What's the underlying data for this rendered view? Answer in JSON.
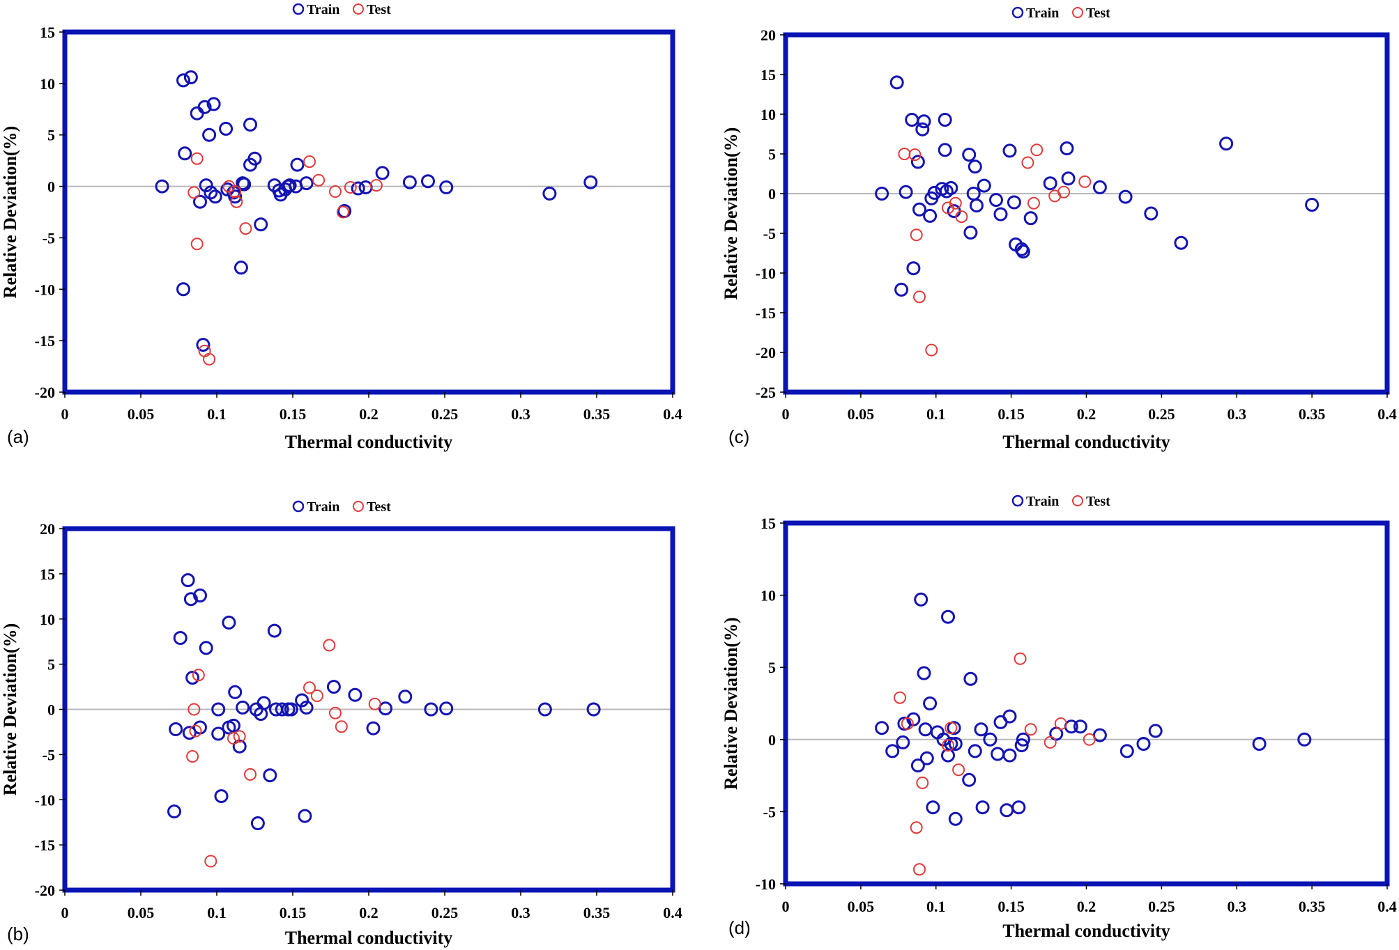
{
  "colors": {
    "train": "#1414b4",
    "test": "#e23a3a",
    "frame": "#0a14b4"
  },
  "chart_data": [
    {
      "type": "scatter",
      "panel_label": "(a)",
      "title": "",
      "xlabel": "Thermal conductivity",
      "ylabel": "Relative Deviation(%)",
      "xlim": [
        0,
        0.4
      ],
      "ylim": [
        -20,
        15
      ],
      "xticks": [
        0,
        0.05,
        0.1,
        0.15,
        0.2,
        0.25,
        0.3,
        0.35,
        0.4
      ],
      "xtick_labels": [
        "0",
        "0.05",
        "0.1",
        "0.15",
        "0.2",
        "0.25",
        "0.3",
        "0.35",
        "0.4"
      ],
      "yticks": [
        -20,
        -15,
        -10,
        -5,
        0,
        5,
        10,
        15
      ],
      "ytick_labels": [
        "-20",
        "-15",
        "-10",
        "-5",
        "0",
        "5",
        "10",
        "15"
      ],
      "legend": [
        "Train",
        "Test"
      ],
      "series": [
        {
          "name": "Train",
          "points": [
            [
              0.064,
              0
            ],
            [
              0.078,
              10.3
            ],
            [
              0.083,
              10.6
            ],
            [
              0.079,
              3.2
            ],
            [
              0.087,
              7.1
            ],
            [
              0.092,
              7.7
            ],
            [
              0.095,
              5.0
            ],
            [
              0.098,
              8.0
            ],
            [
              0.106,
              5.6
            ],
            [
              0.122,
              6.0
            ],
            [
              0.125,
              2.7
            ],
            [
              0.122,
              2.1
            ],
            [
              0.093,
              0.1
            ],
            [
              0.096,
              -0.6
            ],
            [
              0.099,
              -1.0
            ],
            [
              0.089,
              -1.5
            ],
            [
              0.107,
              -0.3
            ],
            [
              0.111,
              -0.6
            ],
            [
              0.112,
              -1.0
            ],
            [
              0.117,
              0.3
            ],
            [
              0.118,
              0.2
            ],
            [
              0.129,
              -3.7
            ],
            [
              0.116,
              -7.9
            ],
            [
              0.078,
              -10.0
            ],
            [
              0.091,
              -15.4
            ],
            [
              0.138,
              0.1
            ],
            [
              0.141,
              -0.4
            ],
            [
              0.142,
              -0.8
            ],
            [
              0.145,
              -0.3
            ],
            [
              0.147,
              0.0
            ],
            [
              0.148,
              0.1
            ],
            [
              0.152,
              0.0
            ],
            [
              0.153,
              2.1
            ],
            [
              0.159,
              0.3
            ],
            [
              0.184,
              -2.4
            ],
            [
              0.193,
              -0.2
            ],
            [
              0.198,
              -0.1
            ],
            [
              0.209,
              1.3
            ],
            [
              0.227,
              0.4
            ],
            [
              0.239,
              0.5
            ],
            [
              0.251,
              -0.1
            ],
            [
              0.319,
              -0.7
            ],
            [
              0.346,
              0.4
            ]
          ]
        },
        {
          "name": "Test",
          "points": [
            [
              0.085,
              -0.6
            ],
            [
              0.087,
              2.7
            ],
            [
              0.087,
              -5.6
            ],
            [
              0.092,
              -16.0
            ],
            [
              0.095,
              -16.8
            ],
            [
              0.108,
              0.0
            ],
            [
              0.112,
              -0.5
            ],
            [
              0.113,
              -1.5
            ],
            [
              0.119,
              -4.1
            ],
            [
              0.161,
              2.4
            ],
            [
              0.167,
              0.6
            ],
            [
              0.178,
              -0.5
            ],
            [
              0.183,
              -2.5
            ],
            [
              0.188,
              -0.1
            ],
            [
              0.205,
              0.1
            ]
          ]
        }
      ]
    },
    {
      "type": "scatter",
      "panel_label": "(b)",
      "title": "",
      "xlabel": "Thermal conductivity",
      "ylabel": "Relative Deviation(%)",
      "xlim": [
        0,
        0.4
      ],
      "ylim": [
        -20,
        20
      ],
      "xticks": [
        0,
        0.05,
        0.1,
        0.15,
        0.2,
        0.25,
        0.3,
        0.35,
        0.4
      ],
      "xtick_labels": [
        "0",
        "0.05",
        "0.1",
        "0.15",
        "0.2",
        "0.25",
        "0.3",
        "0.35",
        "0.4"
      ],
      "yticks": [
        -20,
        -15,
        -10,
        -5,
        0,
        5,
        10,
        15,
        20
      ],
      "ytick_labels": [
        "-20",
        "-15",
        "-10",
        "-5",
        "0",
        "5",
        "10",
        "15",
        "20"
      ],
      "legend": [
        "Train",
        "Test"
      ],
      "series": [
        {
          "name": "Train",
          "points": [
            [
              0.072,
              -11.3
            ],
            [
              0.073,
              -2.2
            ],
            [
              0.076,
              7.9
            ],
            [
              0.081,
              14.3
            ],
            [
              0.082,
              -2.6
            ],
            [
              0.083,
              12.2
            ],
            [
              0.084,
              3.5
            ],
            [
              0.089,
              12.6
            ],
            [
              0.089,
              -2.0
            ],
            [
              0.093,
              6.8
            ],
            [
              0.101,
              0.0
            ],
            [
              0.101,
              -2.7
            ],
            [
              0.103,
              -9.6
            ],
            [
              0.108,
              9.6
            ],
            [
              0.108,
              -2.0
            ],
            [
              0.111,
              -1.8
            ],
            [
              0.112,
              1.9
            ],
            [
              0.115,
              -4.1
            ],
            [
              0.117,
              0.2
            ],
            [
              0.126,
              0.0
            ],
            [
              0.127,
              -12.6
            ],
            [
              0.129,
              -0.5
            ],
            [
              0.131,
              0.7
            ],
            [
              0.135,
              -7.3
            ],
            [
              0.138,
              8.7
            ],
            [
              0.139,
              0.0
            ],
            [
              0.143,
              0.0
            ],
            [
              0.147,
              0.0
            ],
            [
              0.149,
              0.0
            ],
            [
              0.156,
              1.0
            ],
            [
              0.158,
              -11.8
            ],
            [
              0.159,
              0.2
            ],
            [
              0.177,
              2.5
            ],
            [
              0.191,
              1.6
            ],
            [
              0.203,
              -2.1
            ],
            [
              0.211,
              0.1
            ],
            [
              0.224,
              1.4
            ],
            [
              0.241,
              0.0
            ],
            [
              0.251,
              0.1
            ],
            [
              0.316,
              0.0
            ],
            [
              0.348,
              0.0
            ]
          ]
        },
        {
          "name": "Test",
          "points": [
            [
              0.084,
              -5.2
            ],
            [
              0.085,
              0.0
            ],
            [
              0.086,
              -2.4
            ],
            [
              0.088,
              3.8
            ],
            [
              0.096,
              -16.8
            ],
            [
              0.111,
              -3.2
            ],
            [
              0.115,
              -3.0
            ],
            [
              0.122,
              -7.2
            ],
            [
              0.161,
              2.4
            ],
            [
              0.166,
              1.5
            ],
            [
              0.174,
              7.1
            ],
            [
              0.178,
              -0.4
            ],
            [
              0.182,
              -1.9
            ],
            [
              0.204,
              0.6
            ]
          ]
        }
      ]
    },
    {
      "type": "scatter",
      "panel_label": "(c)",
      "title": "",
      "xlabel": "Thermal conductivity",
      "ylabel": "Relative Deviation(%)",
      "xlim": [
        0,
        0.4
      ],
      "ylim": [
        -25,
        20
      ],
      "xticks": [
        0,
        0.05,
        0.1,
        0.15,
        0.2,
        0.25,
        0.3,
        0.35,
        0.4
      ],
      "xtick_labels": [
        "0",
        "0.05",
        "0.1",
        "0.15",
        "0.2",
        "0.25",
        "0.3",
        "0.35",
        "0.4"
      ],
      "yticks": [
        -25,
        -20,
        -15,
        -10,
        -5,
        0,
        5,
        10,
        15,
        20
      ],
      "ytick_labels": [
        "-25",
        "-20",
        "-15",
        "-10",
        "-5",
        "0",
        "5",
        "10",
        "15",
        "20"
      ],
      "legend": [
        "Train",
        "Test"
      ],
      "series": [
        {
          "name": "Train",
          "points": [
            [
              0.064,
              0.0
            ],
            [
              0.074,
              14.0
            ],
            [
              0.077,
              -12.1
            ],
            [
              0.08,
              0.2
            ],
            [
              0.084,
              9.3
            ],
            [
              0.085,
              -9.4
            ],
            [
              0.088,
              4.0
            ],
            [
              0.089,
              -2.0
            ],
            [
              0.091,
              8.1
            ],
            [
              0.092,
              9.1
            ],
            [
              0.096,
              -2.8
            ],
            [
              0.097,
              -0.6
            ],
            [
              0.099,
              0.1
            ],
            [
              0.104,
              0.6
            ],
            [
              0.106,
              9.3
            ],
            [
              0.106,
              5.5
            ],
            [
              0.107,
              0.3
            ],
            [
              0.11,
              0.7
            ],
            [
              0.112,
              -2.2
            ],
            [
              0.122,
              4.9
            ],
            [
              0.123,
              -4.9
            ],
            [
              0.125,
              0.0
            ],
            [
              0.126,
              3.4
            ],
            [
              0.127,
              -1.5
            ],
            [
              0.132,
              1.0
            ],
            [
              0.14,
              -0.8
            ],
            [
              0.143,
              -2.6
            ],
            [
              0.149,
              5.4
            ],
            [
              0.152,
              -1.1
            ],
            [
              0.153,
              -6.4
            ],
            [
              0.157,
              -7.0
            ],
            [
              0.158,
              -7.3
            ],
            [
              0.163,
              -3.1
            ],
            [
              0.176,
              1.3
            ],
            [
              0.187,
              5.7
            ],
            [
              0.188,
              1.9
            ],
            [
              0.209,
              0.8
            ],
            [
              0.226,
              -0.4
            ],
            [
              0.243,
              -2.5
            ],
            [
              0.263,
              -6.2
            ],
            [
              0.293,
              6.3
            ],
            [
              0.35,
              -1.4
            ]
          ]
        },
        {
          "name": "Test",
          "points": [
            [
              0.079,
              5.0
            ],
            [
              0.086,
              4.9
            ],
            [
              0.087,
              -5.2
            ],
            [
              0.089,
              -13.0
            ],
            [
              0.097,
              -19.7
            ],
            [
              0.108,
              -1.8
            ],
            [
              0.113,
              -1.2
            ],
            [
              0.117,
              -2.9
            ],
            [
              0.161,
              3.9
            ],
            [
              0.165,
              -1.2
            ],
            [
              0.167,
              5.5
            ],
            [
              0.179,
              -0.3
            ],
            [
              0.185,
              0.2
            ],
            [
              0.199,
              1.5
            ]
          ]
        }
      ]
    },
    {
      "type": "scatter",
      "panel_label": "(d)",
      "title": "",
      "xlabel": "Thermal conductivity",
      "ylabel": "Relative Deviation(%)",
      "xlim": [
        0,
        0.4
      ],
      "ylim": [
        -10,
        15
      ],
      "xticks": [
        0,
        0.05,
        0.1,
        0.15,
        0.2,
        0.25,
        0.3,
        0.35,
        0.4
      ],
      "xtick_labels": [
        "0",
        "0.05",
        "0.1",
        "0.15",
        "0.2",
        "0.25",
        "0.3",
        "0.35",
        "0.4"
      ],
      "yticks": [
        -10,
        -5,
        0,
        5,
        10,
        15
      ],
      "ytick_labels": [
        "-10",
        "-5",
        "0",
        "5",
        "10",
        "15"
      ],
      "legend": [
        "Train",
        "Test"
      ],
      "series": [
        {
          "name": "Train",
          "points": [
            [
              0.064,
              0.8
            ],
            [
              0.071,
              -0.8
            ],
            [
              0.078,
              -0.2
            ],
            [
              0.079,
              1.1
            ],
            [
              0.085,
              1.4
            ],
            [
              0.088,
              -1.8
            ],
            [
              0.09,
              9.7
            ],
            [
              0.092,
              4.6
            ],
            [
              0.093,
              0.7
            ],
            [
              0.094,
              -1.3
            ],
            [
              0.096,
              2.5
            ],
            [
              0.098,
              -4.7
            ],
            [
              0.101,
              0.5
            ],
            [
              0.105,
              0.0
            ],
            [
              0.108,
              8.5
            ],
            [
              0.108,
              -1.1
            ],
            [
              0.11,
              -0.3
            ],
            [
              0.112,
              0.8
            ],
            [
              0.113,
              -0.3
            ],
            [
              0.113,
              -5.5
            ],
            [
              0.122,
              -2.8
            ],
            [
              0.123,
              4.2
            ],
            [
              0.126,
              -0.8
            ],
            [
              0.13,
              0.7
            ],
            [
              0.131,
              -4.7
            ],
            [
              0.136,
              0.0
            ],
            [
              0.141,
              -1.0
            ],
            [
              0.143,
              1.2
            ],
            [
              0.147,
              -4.9
            ],
            [
              0.149,
              1.6
            ],
            [
              0.149,
              -1.1
            ],
            [
              0.155,
              -4.7
            ],
            [
              0.157,
              -0.4
            ],
            [
              0.158,
              0.0
            ],
            [
              0.18,
              0.4
            ],
            [
              0.19,
              0.9
            ],
            [
              0.196,
              0.9
            ],
            [
              0.209,
              0.3
            ],
            [
              0.227,
              -0.8
            ],
            [
              0.238,
              -0.3
            ],
            [
              0.246,
              0.6
            ],
            [
              0.315,
              -0.3
            ],
            [
              0.345,
              0.0
            ]
          ]
        },
        {
          "name": "Test",
          "points": [
            [
              0.076,
              2.9
            ],
            [
              0.081,
              1.1
            ],
            [
              0.087,
              -6.1
            ],
            [
              0.089,
              -9.0
            ],
            [
              0.091,
              -3.0
            ],
            [
              0.108,
              -0.4
            ],
            [
              0.11,
              0.8
            ],
            [
              0.115,
              -2.1
            ],
            [
              0.156,
              5.6
            ],
            [
              0.163,
              0.7
            ],
            [
              0.176,
              -0.2
            ],
            [
              0.183,
              1.1
            ],
            [
              0.202,
              0.0
            ]
          ]
        }
      ]
    }
  ]
}
